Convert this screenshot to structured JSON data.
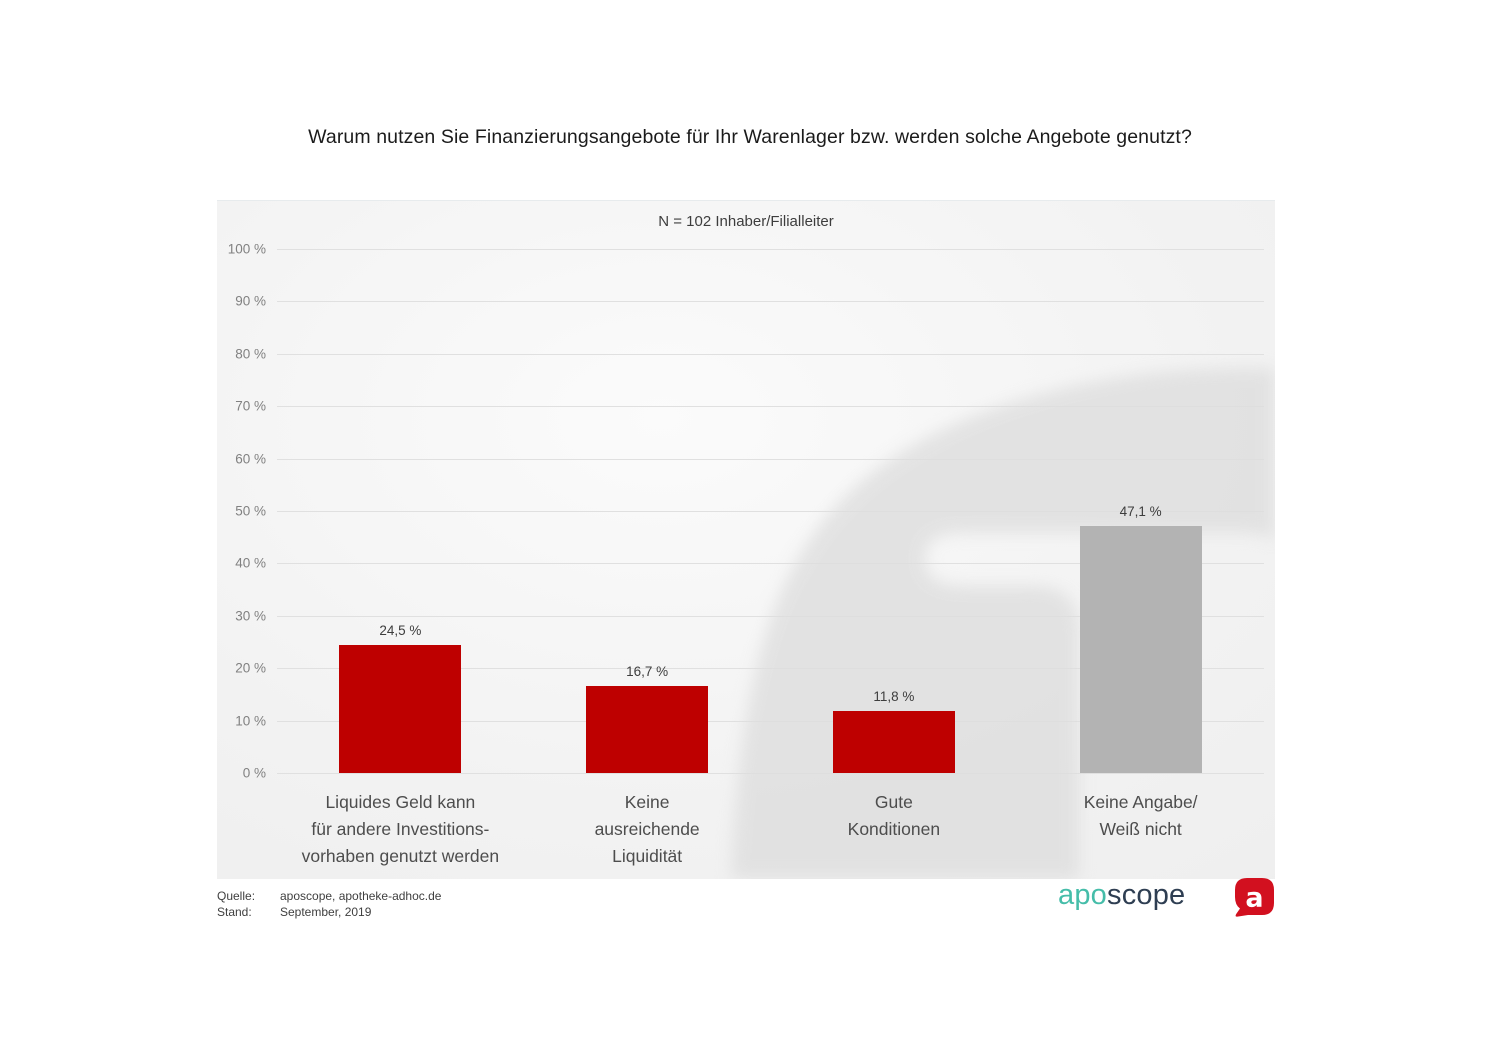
{
  "chart_data": {
    "type": "bar",
    "title": "Warum nutzen Sie Finanzierungsangebote für Ihr Warenlager bzw. werden solche Angebote genutzt?",
    "subtitle": "N = 102 Inhaber/Filialleiter",
    "categories": [
      [
        "Liquides Geld kann",
        "für andere Investitions-",
        "vorhaben genutzt werden"
      ],
      [
        "Keine",
        "ausreichende",
        "Liquidität"
      ],
      [
        "Gute",
        "Konditionen"
      ],
      [
        "Keine Angabe/",
        "Weiß nicht"
      ]
    ],
    "values": [
      24.5,
      16.7,
      11.8,
      47.1
    ],
    "value_labels": [
      "24,5 %",
      "16,7 %",
      "11,8 %",
      "47,1 %"
    ],
    "bar_colors": [
      "#be0000",
      "#be0000",
      "#be0000",
      "#b3b3b3"
    ],
    "xlabel": "",
    "ylabel": "",
    "ylim": [
      0,
      100
    ],
    "ytick_step": 10,
    "yticks": [
      "100 %",
      "90 %",
      "80 %",
      "70 %",
      "60 %",
      "50 %",
      "40 %",
      "30 %",
      "20 %",
      "10 %",
      "0 %"
    ],
    "grid": true,
    "legend": false
  },
  "footer": {
    "source_label": "Quelle:",
    "source_value": "aposcope, apotheke-adhoc.de",
    "date_label": "Stand:",
    "date_value": "September, 2019"
  },
  "logo": {
    "word_part1": "apo",
    "word_part2": "scope",
    "icon_letter": "a"
  },
  "colors": {
    "bar_red": "#be0000",
    "bar_gray": "#b3b3b3",
    "gridline": "#e0e0e0",
    "logo_teal": "#45bda9",
    "logo_navy": "#2e3e52",
    "logo_icon_red": "#d2101f",
    "panel_background": "#efefef",
    "watermark_gray": "#dedede"
  }
}
